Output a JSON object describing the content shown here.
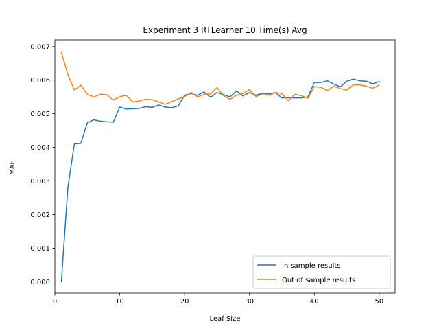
{
  "chart_data": {
    "type": "line",
    "title": "Experiment 3 RTLearner 10 Time(s) Avg",
    "xlabel": "Leaf Size",
    "ylabel": "MAE",
    "xlim": [
      0,
      52.45
    ],
    "ylim": [
      -0.00034,
      0.0072
    ],
    "x_ticks": [
      0,
      10,
      20,
      30,
      40,
      50
    ],
    "y_ticks": [
      0.0,
      0.001,
      0.002,
      0.003,
      0.004,
      0.005,
      0.006,
      0.007
    ],
    "x_tick_labels": [
      "0",
      "10",
      "20",
      "30",
      "40",
      "50"
    ],
    "y_tick_labels": [
      "0.000",
      "0.001",
      "0.002",
      "0.003",
      "0.004",
      "0.005",
      "0.006",
      "0.007"
    ],
    "grid": false,
    "legend_position": "lower-right",
    "x": [
      1,
      2,
      3,
      4,
      5,
      6,
      7,
      8,
      9,
      10,
      11,
      12,
      13,
      14,
      15,
      16,
      17,
      18,
      19,
      20,
      21,
      22,
      23,
      24,
      25,
      26,
      27,
      28,
      29,
      30,
      31,
      32,
      33,
      34,
      35,
      36,
      37,
      38,
      39,
      40,
      41,
      42,
      43,
      44,
      45,
      46,
      47,
      48,
      49,
      50
    ],
    "series": [
      {
        "name": "In sample results",
        "color": "#1f77b4",
        "values": [
          0.0,
          0.0028,
          0.0041,
          0.00412,
          0.00473,
          0.00482,
          0.00478,
          0.00476,
          0.00475,
          0.0052,
          0.00514,
          0.00515,
          0.00516,
          0.00521,
          0.00519,
          0.00526,
          0.0052,
          0.00518,
          0.00523,
          0.00555,
          0.0056,
          0.00555,
          0.00565,
          0.00549,
          0.00563,
          0.00557,
          0.0055,
          0.00568,
          0.00553,
          0.00563,
          0.00555,
          0.00561,
          0.00559,
          0.00563,
          0.00547,
          0.00548,
          0.00547,
          0.00547,
          0.0055,
          0.00593,
          0.00593,
          0.00598,
          0.00588,
          0.0058,
          0.00597,
          0.00603,
          0.00598,
          0.00597,
          0.00589,
          0.00596
        ]
      },
      {
        "name": "Out of sample results",
        "color": "#ff7f0e",
        "values": [
          0.00683,
          0.00617,
          0.00571,
          0.00585,
          0.00558,
          0.0055,
          0.00558,
          0.00557,
          0.00541,
          0.00551,
          0.00555,
          0.00535,
          0.00538,
          0.00543,
          0.00542,
          0.00535,
          0.00528,
          0.00536,
          0.00544,
          0.00551,
          0.00563,
          0.0055,
          0.00558,
          0.00559,
          0.00578,
          0.00554,
          0.00543,
          0.00555,
          0.0056,
          0.00572,
          0.00551,
          0.00559,
          0.00555,
          0.00563,
          0.0056,
          0.00539,
          0.00558,
          0.00554,
          0.00546,
          0.00581,
          0.00579,
          0.00569,
          0.00582,
          0.00575,
          0.00571,
          0.00586,
          0.00586,
          0.00582,
          0.00576,
          0.00585
        ]
      }
    ]
  }
}
